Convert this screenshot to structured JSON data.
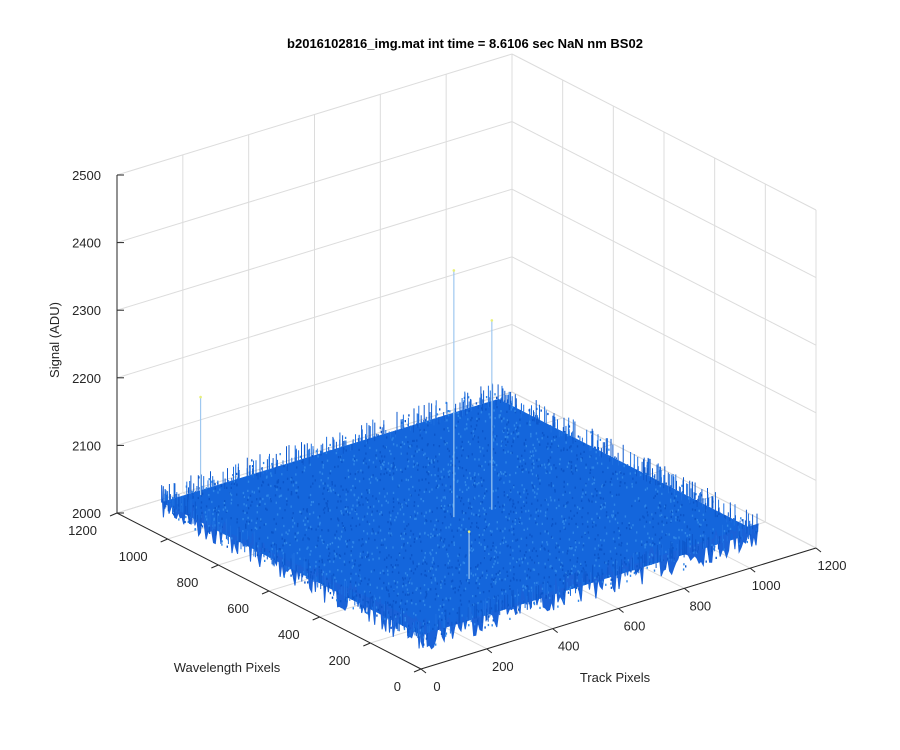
{
  "chart_data": {
    "type": "surface",
    "title": "b2016102816_img.mat int time = 8.6106 sec  NaN nm BS02",
    "xlabel": "Track Pixels",
    "ylabel": "Wavelength Pixels",
    "zlabel": "Signal (ADU)",
    "xlim": [
      0,
      1200
    ],
    "ylim": [
      0,
      1200
    ],
    "zlim": [
      2000,
      2500
    ],
    "xticks": [
      "0",
      "200",
      "400",
      "600",
      "800",
      "1000",
      "1200"
    ],
    "yticks": [
      "0",
      "200",
      "400",
      "600",
      "800",
      "1000",
      "1200"
    ],
    "zticks": [
      "2000",
      "2100",
      "2200",
      "2300",
      "2400",
      "2500"
    ],
    "surface_extent": {
      "x": [
        0,
        1024
      ],
      "y": [
        0,
        1024
      ]
    },
    "baseline_mean": 2050,
    "noise_amplitude": 25,
    "spikes": [
      {
        "x": 500,
        "y": 520,
        "z": 2415
      },
      {
        "x": 600,
        "y": 500,
        "z": 2330
      },
      {
        "x": 100,
        "y": 1000,
        "z": 2195
      },
      {
        "x": 300,
        "y": 200,
        "z": 2120
      }
    ],
    "grid": true,
    "colormap": "parula",
    "surface_color": "#1466dc"
  }
}
